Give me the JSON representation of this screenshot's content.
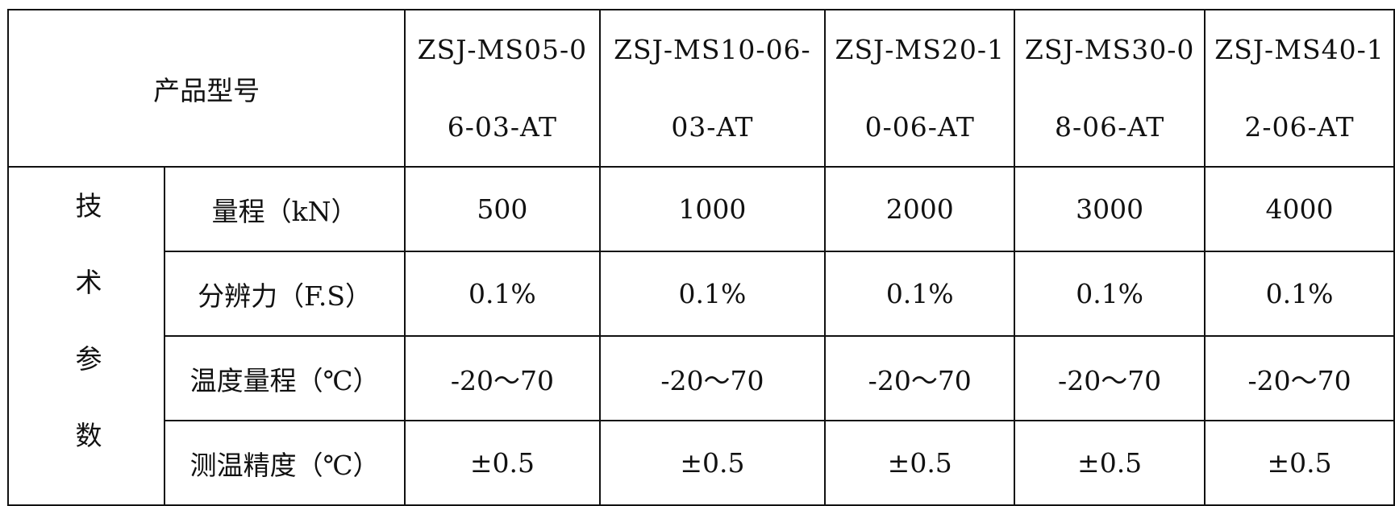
{
  "table": {
    "corner": "产品型号",
    "group": "技术参数",
    "models": [
      [
        "ZSJ-MS05-0",
        "6-03-AT"
      ],
      [
        "ZSJ-MS10-06-",
        "03-AT"
      ],
      [
        "ZSJ-MS20-1",
        "0-06-AT"
      ],
      [
        "ZSJ-MS30-0",
        "8-06-AT"
      ],
      [
        "ZSJ-MS40-1",
        "2-06-AT"
      ]
    ],
    "rows": [
      {
        "label": "量程（kN）",
        "values": [
          "500",
          "1000",
          "2000",
          "3000",
          "4000"
        ]
      },
      {
        "label": "分辨力（F.S）",
        "values": [
          "0.1%",
          "0.1%",
          "0.1%",
          "0.1%",
          "0.1%"
        ]
      },
      {
        "label": "温度量程（℃）",
        "values": [
          "-20～70",
          "-20～70",
          "-20～70",
          "-20～70",
          "-20～70"
        ]
      },
      {
        "label": "测温精度（℃）",
        "values": [
          "±0.5",
          "±0.5",
          "±0.5",
          "±0.5",
          "±0.5"
        ]
      }
    ]
  }
}
